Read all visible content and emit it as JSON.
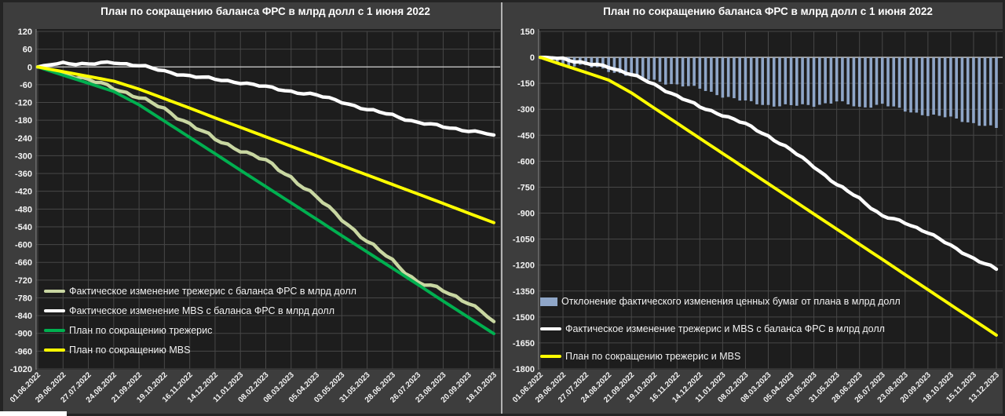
{
  "page": {
    "background": "#3d3d3d",
    "plot_background": "#1d1d1d",
    "gridline_color": "#474747",
    "zero_line_color": "#d0d0d0",
    "text_color": "#ffffff",
    "divider_color": "#b3b3b3"
  },
  "chart_data": [
    {
      "type": "line",
      "title": "План по сокращению баланса ФРС в млрд долл с 1 июня 2022",
      "xlabel": "",
      "ylabel": "",
      "ylim": [
        -1020,
        120
      ],
      "ytick_step": 60,
      "grid": true,
      "legend_position": "inside-bottom-left",
      "categories": [
        "01.06.2022",
        "29.06.2022",
        "27.07.2022",
        "24.08.2022",
        "21.09.2022",
        "19.10.2022",
        "16.11.2022",
        "14.12.2022",
        "11.01.2023",
        "08.02.2023",
        "08.03.2023",
        "05.04.2023",
        "03.05.2023",
        "31.05.2023",
        "28.06.2023",
        "26.07.2023",
        "23.08.2023",
        "20.09.2023",
        "18.10.2023"
      ],
      "series": [
        {
          "name": "Фактическое изменение трежерис с баланса ФРС в млрд долл",
          "type": "line",
          "color": "#c9d7a2",
          "wiggle": 8,
          "values": [
            0,
            -20,
            -45,
            -70,
            -103,
            -143,
            -192,
            -245,
            -280,
            -318,
            -372,
            -441,
            -512,
            -591,
            -653,
            -728,
            -755,
            -795,
            -860
          ]
        },
        {
          "name": "Фактическое изменение MBS с баланса ФРС в млрд долл",
          "type": "line",
          "color": "#ffffff",
          "wiggle": 5,
          "values": [
            0,
            15,
            8,
            16,
            5,
            -15,
            -30,
            -42,
            -52,
            -68,
            -82,
            -96,
            -117,
            -145,
            -162,
            -188,
            -202,
            -215,
            -230
          ]
        },
        {
          "name": "План по сокращению трежерис",
          "type": "line",
          "color": "#00b050",
          "wiggle": 0,
          "values": [
            0,
            -28,
            -55,
            -83,
            -128,
            -183,
            -238,
            -293,
            -349,
            -404,
            -459,
            -514,
            -570,
            -625,
            -680,
            -735,
            -791,
            -846,
            -901
          ]
        },
        {
          "name": "План по сокращению MBS",
          "type": "line",
          "color": "#ffff00",
          "wiggle": 0,
          "values": [
            0,
            -16,
            -32,
            -48,
            -75,
            -107,
            -139,
            -172,
            -204,
            -236,
            -268,
            -300,
            -333,
            -365,
            -397,
            -429,
            -461,
            -494,
            -526
          ]
        }
      ]
    },
    {
      "type": "bar",
      "title": "План по сокращению баланса ФРС в млрд долл с 1 июня 2022",
      "xlabel": "",
      "ylabel": "",
      "ylim": [
        -1800,
        150
      ],
      "ytick_step": 150,
      "grid": true,
      "legend_position": "inside-bottom-left",
      "categories": [
        "01.06.2022",
        "29.06.2022",
        "27.07.2022",
        "24.08.2022",
        "21.09.2022",
        "19.10.2022",
        "16.11.2022",
        "14.12.2022",
        "11.01.2023",
        "08.02.2023",
        "08.03.2023",
        "05.04.2023",
        "03.05.2023",
        "31.05.2023",
        "28.06.2023",
        "26.07.2023",
        "23.08.2023",
        "20.09.2023",
        "18.10.2023",
        "15.11.2023",
        "13.12.2023"
      ],
      "series": [
        {
          "name": "Отклонение фактического изменения ценных бумаг от плана в млрд долл",
          "type": "bar",
          "color": "#8fa6c8",
          "wiggle": 11,
          "values": [
            0,
            -39,
            -50,
            -77,
            -107,
            -135,
            -158,
            -181,
            -223,
            -256,
            -276,
            -280,
            -276,
            -256,
            -290,
            -270,
            -310,
            -332,
            -350,
            -380,
            -410
          ]
        },
        {
          "name": "Фактическое изменение трежерис и MBS с баланса ФРС в млрд долл",
          "type": "line",
          "color": "#ffffff",
          "wiggle": 8,
          "values": [
            0,
            -5,
            -37,
            -54,
            -98,
            -158,
            -222,
            -287,
            -332,
            -386,
            -454,
            -537,
            -629,
            -736,
            -815,
            -916,
            -957,
            -1010,
            -1090,
            -1160,
            -1224
          ]
        },
        {
          "name": "План по сокращению трежерис и MBS",
          "type": "line",
          "color": "#ffff00",
          "wiggle": 0,
          "values": [
            0,
            -44,
            -87,
            -131,
            -205,
            -293,
            -380,
            -468,
            -555,
            -642,
            -730,
            -817,
            -905,
            -992,
            -1080,
            -1167,
            -1255,
            -1342,
            -1430,
            -1517,
            -1605
          ]
        }
      ]
    }
  ]
}
